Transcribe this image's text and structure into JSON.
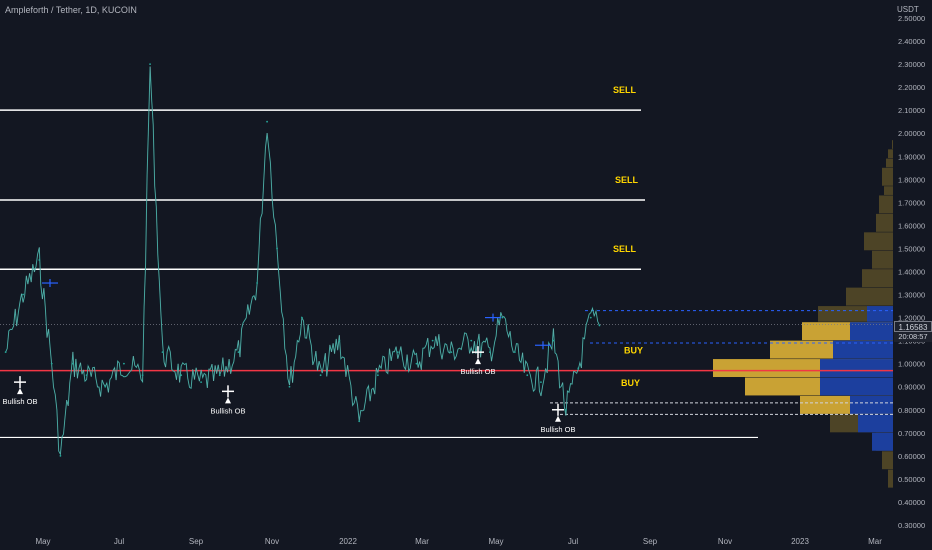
{
  "header": {
    "title": "Ampleforth / Tether, 1D, KUCOIN",
    "unit": "USDT"
  },
  "last_price": {
    "value": "1.16583",
    "countdown": "20:08:57"
  },
  "chart_data": {
    "type": "line",
    "symbol": "Ampleforth / Tether",
    "timeframe": "1D",
    "exchange": "KUCOIN",
    "y_axis": {
      "ticks": [
        "2.50000",
        "2.40000",
        "2.30000",
        "2.20000",
        "2.10000",
        "2.00000",
        "1.90000",
        "1.80000",
        "1.70000",
        "1.60000",
        "1.50000",
        "1.40000",
        "1.30000",
        "1.20000",
        "1.10000",
        "1.00000",
        "0.90000",
        "0.80000",
        "0.70000",
        "0.60000",
        "0.50000",
        "0.40000",
        "0.30000"
      ],
      "range": [
        0.3,
        2.5
      ]
    },
    "x_axis": {
      "ticks": [
        "May",
        "Jul",
        "Sep",
        "Nov",
        "2022",
        "Mar",
        "May",
        "Jul",
        "Sep",
        "Nov",
        "2023",
        "Mar"
      ]
    },
    "series": [
      {
        "x": [
          "2021-04-01",
          "2021-04-15",
          "2021-04-28",
          "2021-05-08",
          "2021-05-15",
          "2021-05-25",
          "2021-06-05",
          "2021-06-20",
          "2021-07-05",
          "2021-07-20",
          "2021-07-26",
          "2021-08-05",
          "2021-08-20",
          "2021-09-05",
          "2021-09-20",
          "2021-10-05",
          "2021-10-20",
          "2021-10-28",
          "2021-11-05",
          "2021-11-15",
          "2021-11-25",
          "2021-12-10",
          "2021-12-25",
          "2022-01-10",
          "2022-01-25",
          "2022-02-10",
          "2022-02-25",
          "2022-03-10",
          "2022-03-25",
          "2022-04-10",
          "2022-04-25",
          "2022-05-05",
          "2022-05-15",
          "2022-05-25",
          "2022-06-05",
          "2022-06-15",
          "2022-06-25",
          "2022-07-05",
          "2022-07-15",
          "2022-07-22"
        ],
        "y": [
          1.05,
          1.3,
          1.45,
          1.0,
          0.6,
          1.0,
          0.95,
          0.9,
          1.0,
          0.95,
          2.3,
          1.05,
          0.95,
          0.92,
          0.95,
          1.05,
          1.35,
          2.05,
          1.5,
          0.9,
          1.2,
          0.95,
          1.1,
          0.75,
          0.95,
          1.05,
          1.0,
          1.1,
          1.05,
          1.1,
          1.05,
          1.2,
          1.05,
          0.95,
          0.92,
          1.1,
          0.8,
          0.98,
          1.2,
          1.16583
        ]
      }
    ],
    "levels": [
      {
        "label": "SELL",
        "price": 2.1
      },
      {
        "label": "SELL",
        "price": 1.71
      },
      {
        "label": "SELL",
        "price": 1.41
      },
      {
        "label": "BUY",
        "price": 0.97
      },
      {
        "label": "BUY",
        "price": 0.83
      },
      {
        "label": "",
        "price": 0.68
      }
    ],
    "annotations": [
      "Bullish OB",
      "Bullish OB",
      "Bullish OB",
      "Bullish OB"
    ],
    "volume_profile": "right-side histogram",
    "grid": false,
    "legend": "none"
  }
}
